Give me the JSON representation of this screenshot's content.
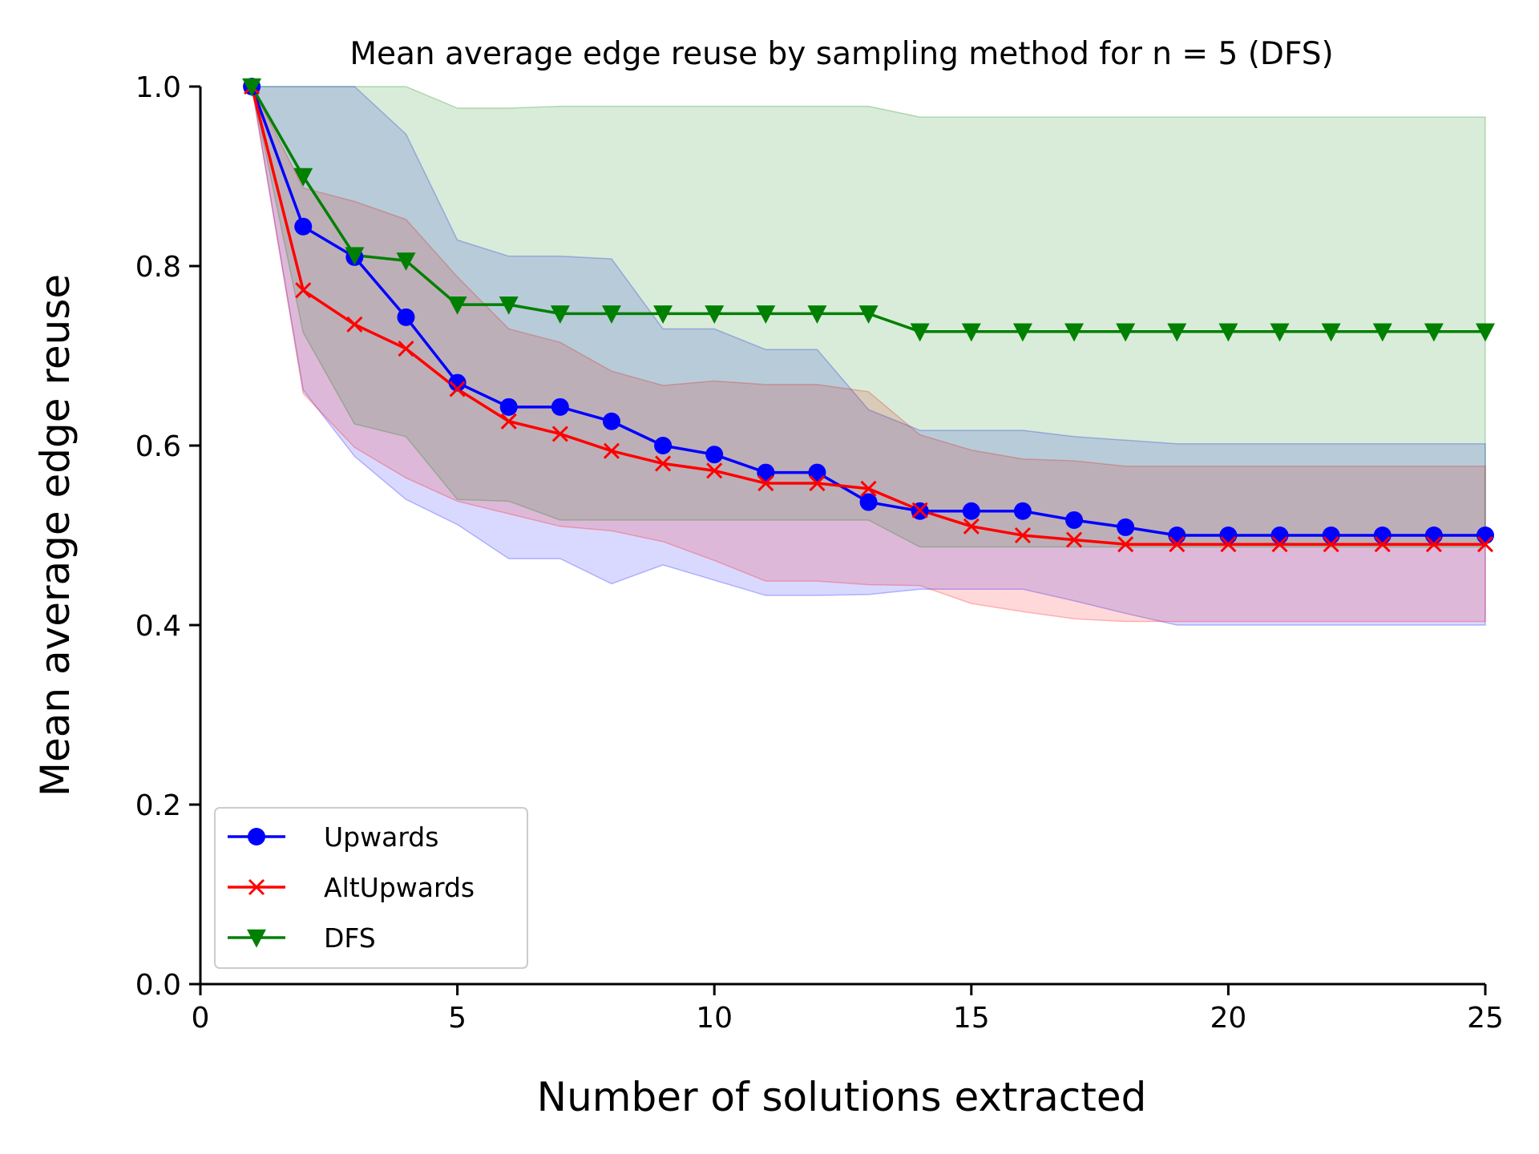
{
  "chart_data": {
    "type": "line",
    "title": "Mean average edge reuse by sampling method for n = 5 (DFS)",
    "xlabel": "Number of solutions extracted",
    "ylabel": "Mean average edge reuse",
    "xlim": [
      0,
      25
    ],
    "ylim": [
      0,
      1.0
    ],
    "xticks": [
      "0",
      "5",
      "10",
      "15",
      "20",
      "25"
    ],
    "yticks": [
      "0.0",
      "0.2",
      "0.4",
      "0.6",
      "0.8",
      "1.0"
    ],
    "grid": false,
    "legend_position": "lower-left",
    "x": [
      1,
      2,
      3,
      4,
      5,
      6,
      7,
      8,
      9,
      10,
      11,
      12,
      13,
      14,
      15,
      16,
      17,
      18,
      19,
      20,
      21,
      22,
      23,
      24,
      25
    ],
    "series": [
      {
        "name": "Upwards",
        "color": "#0000ff",
        "marker": "circle",
        "values": [
          1.0,
          0.844,
          0.81,
          0.743,
          0.67,
          0.643,
          0.643,
          0.627,
          0.6,
          0.59,
          0.57,
          0.57,
          0.537,
          0.527,
          0.527,
          0.527,
          0.517,
          0.509,
          0.5,
          0.5,
          0.5,
          0.5,
          0.5,
          0.5,
          0.5
        ],
        "band_upper": [
          1.0,
          1.0,
          1.0,
          0.947,
          0.829,
          0.811,
          0.811,
          0.808,
          0.73,
          0.73,
          0.707,
          0.707,
          0.64,
          0.617,
          0.617,
          0.617,
          0.61,
          0.606,
          0.602,
          0.602,
          0.602,
          0.602,
          0.602,
          0.602,
          0.602
        ],
        "band_lower": [
          1.0,
          0.662,
          0.588,
          0.54,
          0.512,
          0.474,
          0.474,
          0.446,
          0.467,
          0.45,
          0.433,
          0.433,
          0.434,
          0.44,
          0.44,
          0.44,
          0.427,
          0.413,
          0.4,
          0.4,
          0.4,
          0.4,
          0.4,
          0.4,
          0.4
        ]
      },
      {
        "name": "AltUpwards",
        "color": "#ff0000",
        "marker": "x",
        "values": [
          1.0,
          0.773,
          0.735,
          0.708,
          0.663,
          0.627,
          0.613,
          0.594,
          0.58,
          0.572,
          0.558,
          0.558,
          0.552,
          0.528,
          0.51,
          0.5,
          0.495,
          0.49,
          0.49,
          0.49,
          0.49,
          0.49,
          0.49,
          0.49,
          0.49
        ],
        "band_upper": [
          1.0,
          0.887,
          0.872,
          0.852,
          0.788,
          0.73,
          0.715,
          0.683,
          0.667,
          0.672,
          0.668,
          0.668,
          0.66,
          0.612,
          0.595,
          0.585,
          0.583,
          0.577,
          0.577,
          0.577,
          0.577,
          0.577,
          0.577,
          0.577,
          0.577
        ],
        "band_lower": [
          1.0,
          0.658,
          0.598,
          0.564,
          0.538,
          0.524,
          0.51,
          0.505,
          0.493,
          0.472,
          0.449,
          0.449,
          0.445,
          0.444,
          0.424,
          0.415,
          0.407,
          0.404,
          0.404,
          0.404,
          0.404,
          0.404,
          0.404,
          0.404,
          0.404
        ]
      },
      {
        "name": "DFS",
        "color": "#008000",
        "marker": "triangle-down",
        "values": [
          1.0,
          0.9,
          0.812,
          0.806,
          0.757,
          0.757,
          0.747,
          0.747,
          0.747,
          0.747,
          0.747,
          0.747,
          0.747,
          0.727,
          0.727,
          0.727,
          0.727,
          0.727,
          0.727,
          0.727,
          0.727,
          0.727,
          0.727,
          0.727,
          0.727
        ],
        "band_upper": [
          1.0,
          1.0,
          1.0,
          1.0,
          0.976,
          0.976,
          0.978,
          0.978,
          0.978,
          0.978,
          0.978,
          0.978,
          0.978,
          0.966,
          0.966,
          0.966,
          0.966,
          0.966,
          0.966,
          0.966,
          0.966,
          0.966,
          0.966,
          0.966,
          0.966
        ],
        "band_lower": [
          1.0,
          0.726,
          0.624,
          0.61,
          0.54,
          0.538,
          0.517,
          0.517,
          0.517,
          0.517,
          0.517,
          0.517,
          0.517,
          0.487,
          0.487,
          0.487,
          0.487,
          0.487,
          0.487,
          0.487,
          0.487,
          0.487,
          0.487,
          0.487,
          0.487
        ]
      }
    ]
  }
}
